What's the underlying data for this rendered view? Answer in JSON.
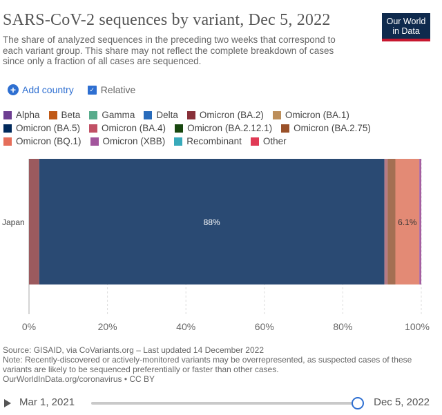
{
  "title": "SARS-CoV-2 sequences by variant, Dec 5, 2022",
  "subtitle": "The share of analyzed sequences in the preceding two weeks that correspond to each variant group. This share may not reflect the complete breakdown of cases since only a fraction of all cases are sequenced.",
  "logo": {
    "line1": "Our World",
    "line2": "in Data"
  },
  "controls": {
    "add_country": "Add country",
    "relative": "Relative"
  },
  "legend": [
    {
      "label": "Alpha",
      "color": "#6d3e91"
    },
    {
      "label": "Beta",
      "color": "#c05917"
    },
    {
      "label": "Gamma",
      "color": "#58ac8c"
    },
    {
      "label": "Delta",
      "color": "#286bbb"
    },
    {
      "label": "Omicron (BA.2)",
      "color": "#883039"
    },
    {
      "label": "Omicron (BA.1)",
      "color": "#bc8e5a"
    },
    {
      "label": "Omicron (BA.5)",
      "color": "#00295b"
    },
    {
      "label": "Omicron (BA.4)",
      "color": "#c15065"
    },
    {
      "label": "Omicron (BA.2.12.1)",
      "color": "#18470f"
    },
    {
      "label": "Omicron (BA.2.75)",
      "color": "#9a5129"
    },
    {
      "label": "Omicron (BQ.1)",
      "color": "#e56e5a"
    },
    {
      "label": "Omicron (XBB)",
      "color": "#a2559c"
    },
    {
      "label": "Recombinant",
      "color": "#38aaba"
    },
    {
      "label": "Other",
      "color": "#e03a55"
    }
  ],
  "chart_data": {
    "type": "bar",
    "orientation": "horizontal",
    "stacked": true,
    "relative": true,
    "categories": [
      "Japan"
    ],
    "series": [
      {
        "name": "Omicron (BA.2)",
        "values": [
          2.6
        ],
        "color": "#9b5a5e"
      },
      {
        "name": "Omicron (BA.5)",
        "values": [
          88.0
        ],
        "color": "#2a4a73",
        "label": "88%"
      },
      {
        "name": "Omicron (BA.4)",
        "values": [
          0.8
        ],
        "color": "#b67a85"
      },
      {
        "name": "Omicron (BA.2.75)",
        "values": [
          2.0
        ],
        "color": "#a46f53"
      },
      {
        "name": "Omicron (BQ.1)",
        "values": [
          6.1
        ],
        "color": "#e38a75",
        "label": "6.1%"
      },
      {
        "name": "Omicron (XBB)",
        "values": [
          0.5
        ],
        "color": "#a45ea0"
      }
    ],
    "xlim": [
      0,
      100
    ],
    "xticks": [
      "0%",
      "20%",
      "40%",
      "60%",
      "80%",
      "100%"
    ],
    "grid": true
  },
  "footer": {
    "source": "Source: GISAID, via CoVariants.org – Last updated 14 December 2022",
    "note": "Note: Recently-discovered or actively-monitored variants may be overrepresented, as suspected cases of these variants are likely to be sequenced preferentially or faster than other cases.",
    "link": "OurWorldInData.org/coronavirus • CC BY"
  },
  "timeline": {
    "start": "Mar 1, 2021",
    "end": "Dec 5, 2022",
    "position": 1.0
  }
}
